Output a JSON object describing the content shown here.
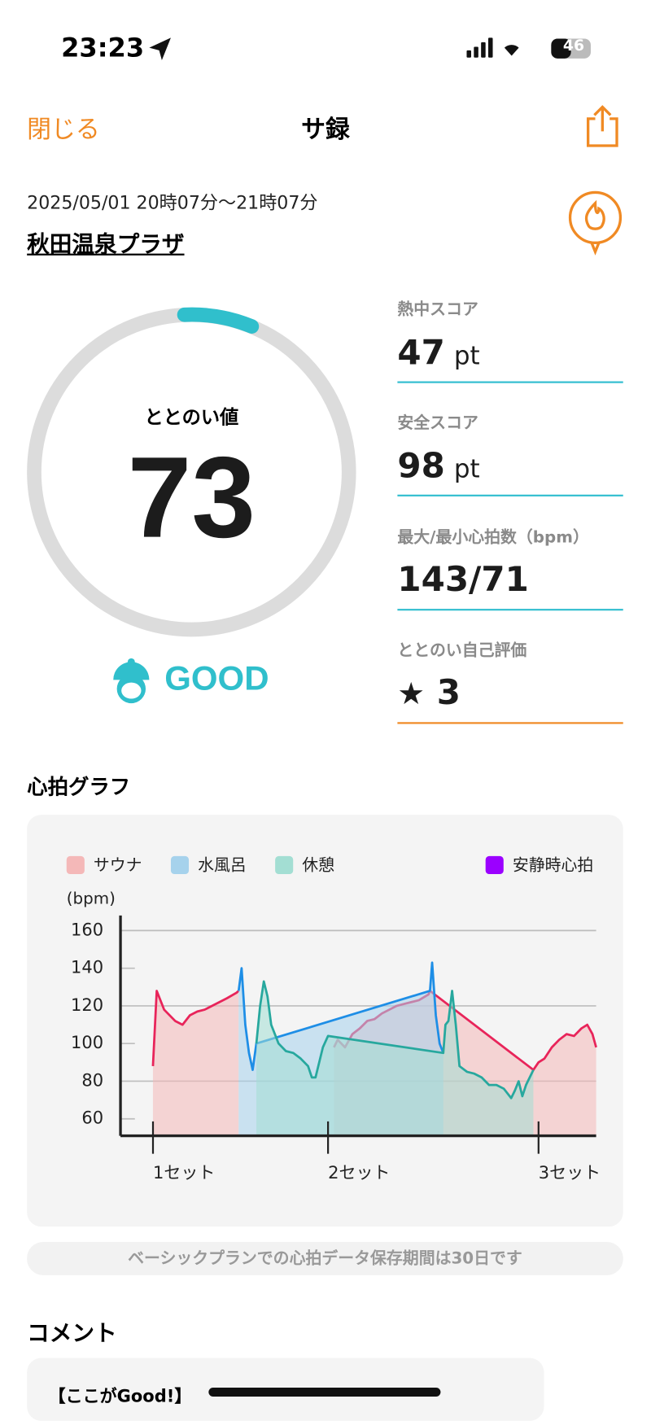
{
  "status_bar": {
    "time": "23:23",
    "battery": "46"
  },
  "header": {
    "close": "閉じる",
    "title": "サ録"
  },
  "session": {
    "datetime": "2025/05/01 20時07分〜21時07分",
    "place": "秋田温泉プラザ"
  },
  "score": {
    "label": "ととのい値",
    "value": 73,
    "rating": "GOOD"
  },
  "stats": [
    {
      "label": "熱中スコア",
      "value": 47,
      "unit": "pt"
    },
    {
      "label": "安全スコア",
      "value": 98,
      "unit": "pt"
    },
    {
      "label": "最大/最小心拍数（bpm）",
      "value": "143/71"
    },
    {
      "label": "ととのい自己評価",
      "value": 3
    }
  ],
  "chart_data": {
    "type": "line",
    "title": "心拍グラフ",
    "ylabel": "(bpm)",
    "ylim": [
      51,
      168
    ],
    "yticks": [
      60,
      80,
      100,
      120,
      140,
      160
    ],
    "xlim": [
      -4.4,
      60
    ],
    "xticks": [
      {
        "value": 0,
        "label": "1セット"
      },
      {
        "value": 23.7,
        "label": "2セット"
      },
      {
        "value": 52.2,
        "label": "3セット"
      }
    ],
    "grid": "alternate",
    "legend": "top",
    "series": [
      {
        "name": "サウナ",
        "color": "#e8245a",
        "fill": "#f4b8b8",
        "x": [
          0,
          0.5,
          1.5,
          3,
          4,
          5,
          6,
          7,
          8,
          9,
          10,
          11.3,
          11.6,
          23.7,
          24.5,
          25,
          26,
          27,
          28,
          29,
          30,
          31,
          32,
          33,
          34,
          35,
          36,
          37.3,
          37.5,
          51.5,
          52.2,
          53,
          54,
          55,
          56,
          57,
          58,
          58.8,
          59.5,
          60
        ],
        "values": [
          88,
          128,
          118,
          112,
          110,
          115,
          117,
          118,
          120,
          122,
          124,
          127,
          128,
          null,
          98,
          102,
          98,
          105,
          108,
          112,
          113,
          116,
          118,
          120,
          121,
          122,
          123,
          126,
          128,
          86,
          90,
          92,
          98,
          102,
          105,
          104,
          108,
          110,
          105,
          98
        ]
      },
      {
        "name": "水風呂",
        "color": "#1e8ee6",
        "fill": "#a6d2ec",
        "x": [
          11.6,
          12,
          12.5,
          13,
          13.5,
          14,
          37.5,
          37.8,
          38.3,
          38.8,
          39.3
        ],
        "values": [
          128,
          140,
          110,
          95,
          86,
          100,
          128,
          143,
          115,
          100,
          95
        ]
      },
      {
        "name": "休憩",
        "color": "#27a89e",
        "fill": "#a3ded3",
        "x": [
          14,
          14.5,
          15,
          15.5,
          16,
          17,
          18,
          19,
          20,
          21,
          21.5,
          22,
          22.5,
          23,
          23.7,
          39.3,
          39.6,
          40,
          40.5,
          41,
          41.5,
          42.5,
          43.5,
          44.5,
          45.5,
          46.5,
          47.5,
          48.5,
          49,
          49.5,
          50,
          50.5,
          51.5
        ],
        "values": [
          100,
          120,
          133,
          125,
          110,
          100,
          96,
          95,
          92,
          88,
          82,
          82,
          90,
          98,
          104,
          95,
          110,
          112,
          128,
          110,
          88,
          85,
          84,
          82,
          78,
          78,
          76,
          71,
          75,
          80,
          72,
          78,
          86
        ]
      },
      {
        "name": "安静時心拍",
        "color": "#9b00ff",
        "fill": "#9b00ff",
        "x": [],
        "values": []
      }
    ]
  },
  "note": "ベーシックプランでの心拍データ保存期間は30日です",
  "comment": {
    "title": "コメント",
    "heading": "【ここがGood!】"
  }
}
